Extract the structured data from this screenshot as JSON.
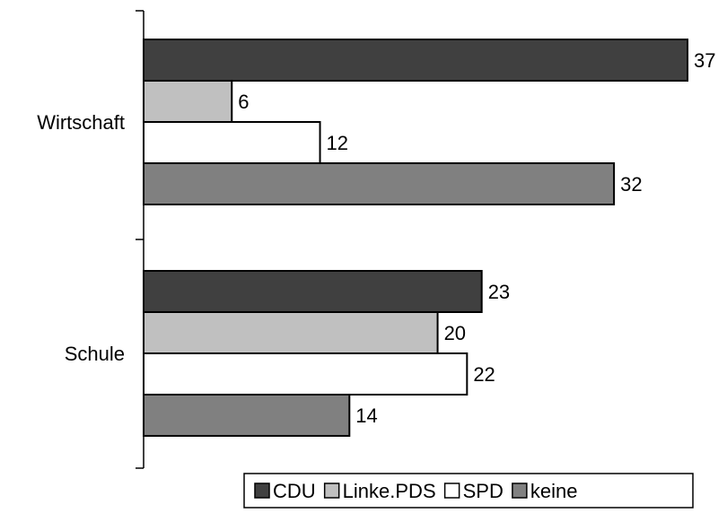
{
  "chart_data": {
    "type": "bar",
    "orientation": "horizontal",
    "categories": [
      "Wirtschaft",
      "Schule"
    ],
    "series": [
      {
        "name": "CDU",
        "values": [
          37,
          23
        ],
        "color": "#404040"
      },
      {
        "name": "Linke.PDS",
        "values": [
          6,
          20
        ],
        "color": "#c0c0c0"
      },
      {
        "name": "SPD",
        "values": [
          12,
          22
        ],
        "color": "#ffffff"
      },
      {
        "name": "keine",
        "values": [
          32,
          14
        ],
        "color": "#808080"
      }
    ],
    "xlim": [
      0,
      37
    ],
    "show_data_labels": true,
    "legend_position": "bottom-right",
    "grid": false
  }
}
